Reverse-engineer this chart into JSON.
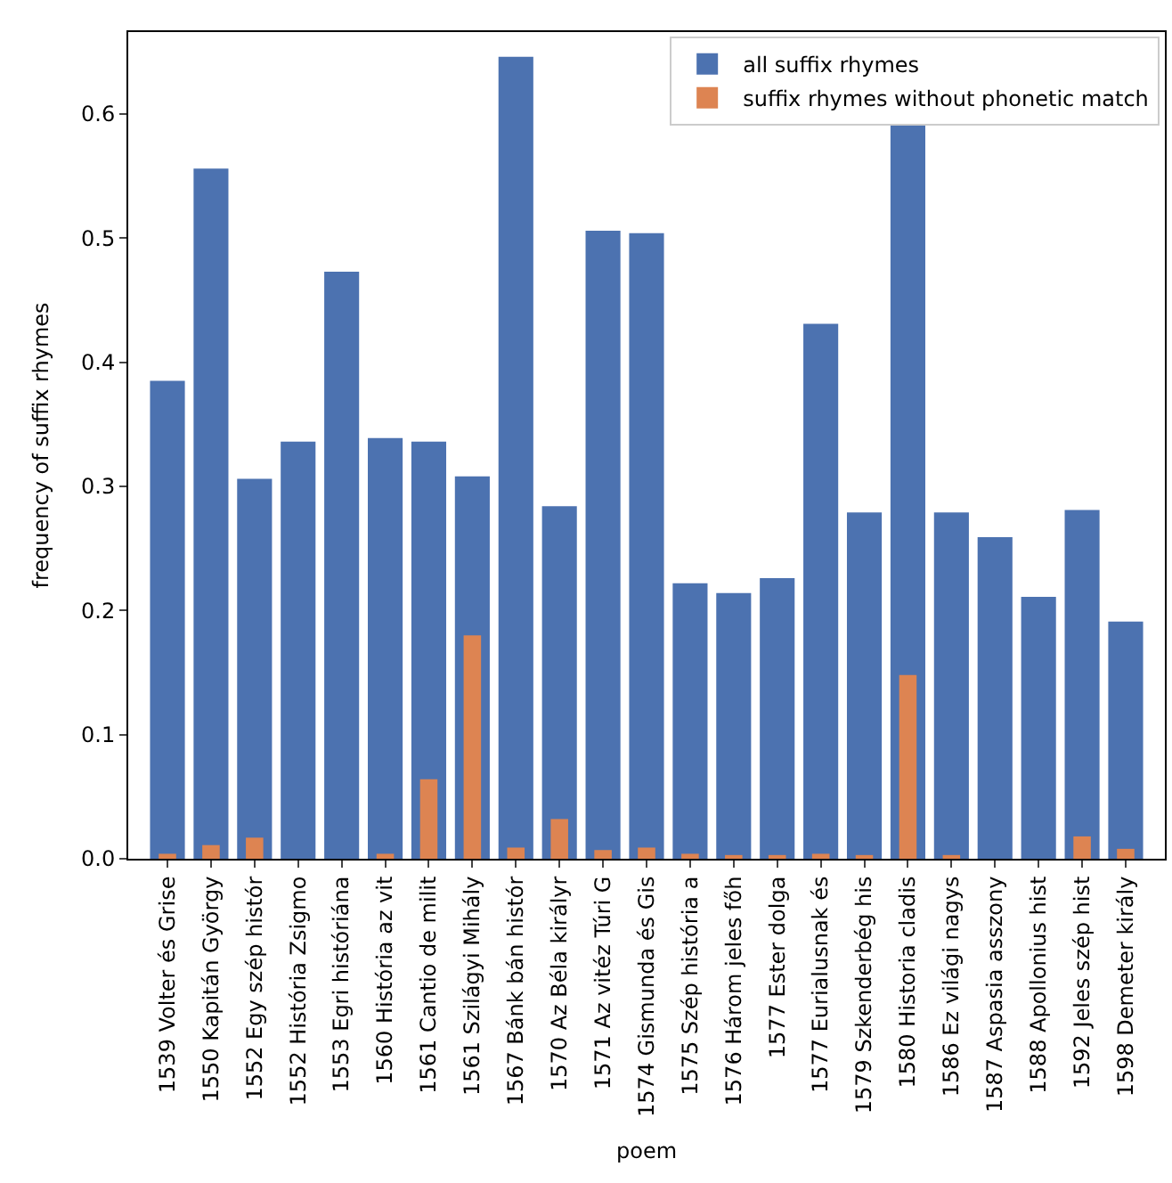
{
  "chart_data": {
    "type": "bar",
    "xlabel": "poem",
    "ylabel": "frequency of suffix rhymes",
    "categories": [
      "1539 Volter és Grise",
      "1550 Kapitán György",
      "1552 Egy szép histór",
      "1552 História Zsigmo",
      "1553 Egri históriána",
      "1560 História az vit",
      "1561 Cantio de milit",
      "1561 Szilágyi Mihály",
      "1567 Bánk bán histór",
      "1570 Az Béla királyr",
      "1571 Az vitéz Túri G",
      "1574 Gismunda és Gis",
      "1575 Szép história a",
      "1576 Három jeles főh",
      "1577 Ester dolga",
      "1577 Eurialusnak és",
      "1579 Szkenderbég his",
      "1580 Historia cladis",
      "1586 Ez világi nagys",
      "1587 Aspasia asszony",
      "1588 Apollonius hist",
      "1592 Jeles szép hist",
      "1598 Demeter király"
    ],
    "series": [
      {
        "name": "all suffix rhymes",
        "color": "#4c72b0",
        "values": [
          0.385,
          0.556,
          0.306,
          0.336,
          0.473,
          0.339,
          0.336,
          0.308,
          0.646,
          0.284,
          0.506,
          0.504,
          0.222,
          0.214,
          0.226,
          0.431,
          0.279,
          0.592,
          0.279,
          0.259,
          0.211,
          0.281,
          0.191
        ]
      },
      {
        "name": "suffix rhymes without phonetic match",
        "color": "#dd8452",
        "values": [
          0.004,
          0.011,
          0.017,
          0,
          0,
          0.004,
          0.064,
          0.18,
          0.009,
          0.032,
          0.007,
          0.009,
          0.004,
          0.003,
          0.003,
          0.004,
          0.003,
          0.148,
          0.003,
          0,
          0,
          0.018,
          0.008
        ]
      }
    ],
    "ylim": [
      0,
      0.666
    ],
    "yticks": [
      {
        "value": 0,
        "label": "0.0"
      },
      {
        "value": 0.1,
        "label": "0.1"
      },
      {
        "value": 0.2,
        "label": "0.2"
      },
      {
        "value": 0.3,
        "label": "0.3"
      },
      {
        "value": 0.4,
        "label": "0.4"
      },
      {
        "value": 0.5,
        "label": "0.5"
      },
      {
        "value": 0.6,
        "label": "0.6"
      }
    ],
    "legend": "top right"
  }
}
